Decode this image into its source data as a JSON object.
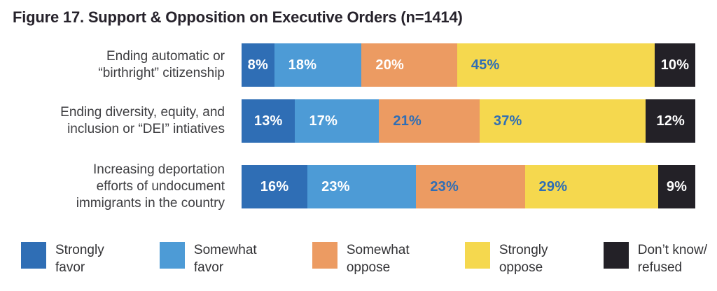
{
  "title": "Figure 17. Support & Opposition on Executive Orders (n=1414)",
  "colors": {
    "strongly_favor": "#2F6EB5",
    "somewhat_favor": "#4D9BD6",
    "somewhat_oppose": "#EC9B62",
    "strongly_oppose": "#F5D84E",
    "dont_know_refused": "#232127",
    "value_label_light": "#FFFFFF",
    "value_label_blue": "#2F6EB5",
    "title_text": "#26222B",
    "category_text": "#3E3E41"
  },
  "chart_data": {
    "type": "bar",
    "stacked": true,
    "orientation": "horizontal",
    "title": "Figure 17. Support & Opposition on Executive Orders (n=1414)",
    "n": 1414,
    "unit": "%",
    "legend_position": "bottom",
    "grid": false,
    "categories": [
      "Ending automatic or\n“birthright” citizenship",
      "Ending diversity, equity, and\ninclusion or “DEI” intiatives",
      "Increasing deportation\nefforts of undocument\nimmigrants in the country"
    ],
    "series": [
      {
        "name": "Strongly favor",
        "color": "#2F6EB5",
        "values": [
          8,
          13,
          16
        ]
      },
      {
        "name": "Somewhat favor",
        "color": "#4D9BD6",
        "values": [
          18,
          17,
          23
        ]
      },
      {
        "name": "Somewhat oppose",
        "color": "#EC9B62",
        "values": [
          20,
          21,
          23
        ]
      },
      {
        "name": "Strongly oppose",
        "color": "#F5D84E",
        "values": [
          45,
          37,
          29
        ]
      },
      {
        "name": "Don’t know/refused",
        "color": "#232127",
        "values": [
          10,
          12,
          9
        ]
      }
    ],
    "value_label_colors": [
      [
        "#FFFFFF",
        "#FFFFFF",
        "#FFFFFF",
        "#2F6EB5",
        "#FFFFFF"
      ],
      [
        "#FFFFFF",
        "#FFFFFF",
        "#2F6EB5",
        "#2F6EB5",
        "#FFFFFF"
      ],
      [
        "#FFFFFF",
        "#FFFFFF",
        "#2F6EB5",
        "#2F6EB5",
        "#FFFFFF"
      ]
    ],
    "value_label_format": "{value}%",
    "legend": [
      {
        "label": "Strongly\nfavor",
        "color": "#2F6EB5"
      },
      {
        "label": "Somewhat\nfavor",
        "color": "#4D9BD6"
      },
      {
        "label": "Somewhat\noppose",
        "color": "#EC9B62"
      },
      {
        "label": "Strongly\noppose",
        "color": "#F5D84E"
      },
      {
        "label": "Don’t know/\nrefused",
        "color": "#232127"
      }
    ]
  }
}
